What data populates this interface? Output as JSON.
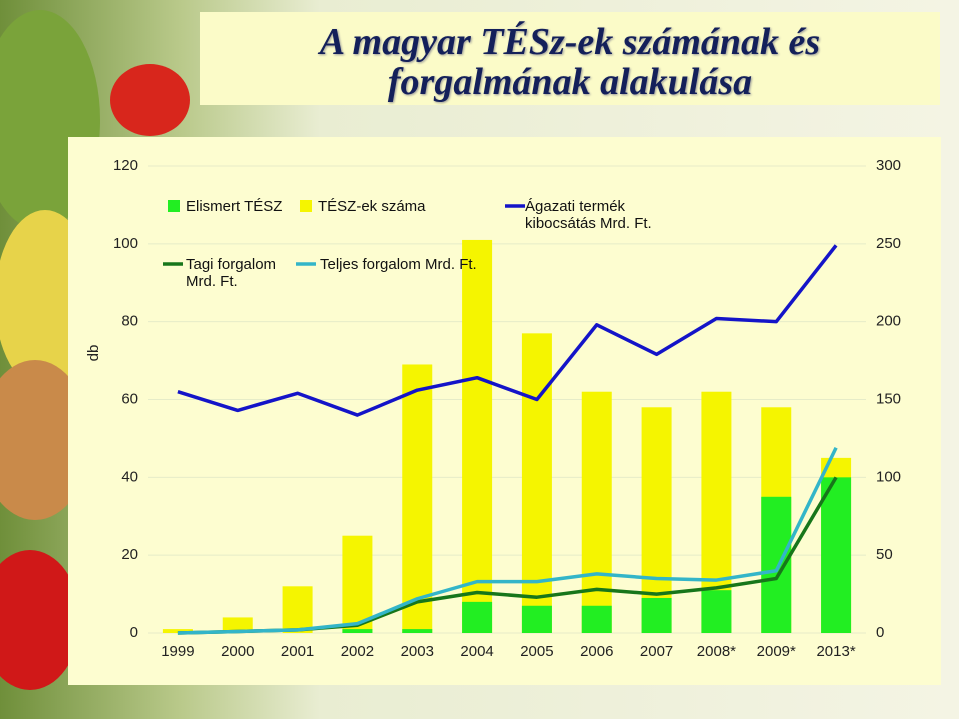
{
  "title": [
    "A magyar TÉSz-ek számának és",
    "forgalmának alakulása"
  ],
  "chart_data": {
    "type": "bar",
    "ylabel": "db",
    "categories": [
      "1999",
      "2000",
      "2001",
      "2002",
      "2003",
      "2004",
      "2005",
      "2006",
      "2007",
      "2008*",
      "2009*",
      "2013*"
    ],
    "series": [
      {
        "name": "Elismert TÉSZ",
        "type": "bar",
        "color": "#22ee22",
        "values": [
          0,
          0,
          0,
          1,
          1,
          8,
          7,
          7,
          9,
          11,
          35,
          40
        ]
      },
      {
        "name": "TÉSZ-ek száma",
        "type": "bar",
        "color": "#f5f500",
        "values": [
          1,
          4,
          12,
          25,
          69,
          101,
          77,
          62,
          58,
          62,
          58,
          45
        ]
      },
      {
        "name": "Tagi forgalom Mrd. Ft.",
        "type": "line",
        "axis": "y2",
        "color": "#17761a",
        "values": [
          0,
          1,
          2,
          5,
          20,
          26,
          23,
          28,
          25,
          29,
          35,
          100
        ]
      },
      {
        "name": "Teljes forgalom Mrd. Ft.",
        "type": "line",
        "axis": "y2",
        "color": "#33b5c8",
        "values": [
          0,
          1,
          2,
          6,
          22,
          33,
          33,
          38,
          35,
          34,
          40,
          119
        ]
      },
      {
        "name": "Ágazati termék kibocsátás Mrd. Ft.",
        "type": "line",
        "axis": "y2",
        "color": "#1414c8",
        "values": [
          155,
          143,
          154,
          140,
          156,
          164,
          150,
          198,
          179,
          202,
          200,
          249
        ]
      }
    ],
    "ylim": [
      0,
      120
    ],
    "yticks": [
      0,
      20,
      40,
      60,
      80,
      100,
      120
    ],
    "y2lim": [
      0,
      300
    ],
    "y2ticks": [
      0,
      50,
      100,
      150,
      200,
      250,
      300
    ],
    "grid": true
  }
}
